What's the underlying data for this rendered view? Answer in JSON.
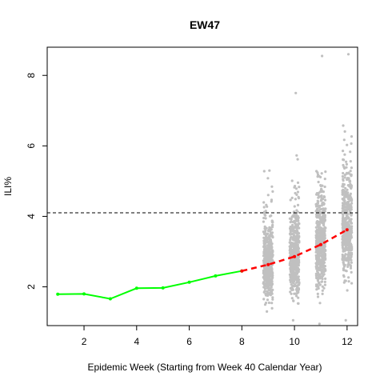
{
  "chart_data": {
    "type": "scatter",
    "title": "EW47",
    "xlabel": "Epidemic Week (Starting from Week 40 Calendar Year)",
    "ylabel": "ILI%",
    "xlim": [
      0.6,
      12.4
    ],
    "ylim": [
      0.9,
      8.8
    ],
    "x_ticks": [
      2,
      4,
      6,
      8,
      10,
      12
    ],
    "y_ticks": [
      2,
      4,
      6,
      8
    ],
    "threshold": {
      "y": 4.1,
      "style": "dashed",
      "color": "#000000"
    },
    "series": [
      {
        "kind": "observed",
        "color": "#00ff00",
        "x": [
          1,
          2,
          3,
          4,
          5,
          6,
          7,
          8
        ],
        "y": [
          1.79,
          1.8,
          1.66,
          1.96,
          1.97,
          2.13,
          2.31,
          2.45
        ]
      },
      {
        "kind": "forecast-median",
        "color": "#ff0000",
        "style": "dashed",
        "x": [
          8,
          9,
          10,
          11,
          12
        ],
        "y": [
          2.45,
          2.63,
          2.86,
          3.2,
          3.62
        ]
      }
    ],
    "forecast_samples": {
      "color": "#c0c0c0",
      "columns": [
        {
          "x": 9,
          "median": 2.63,
          "min": 1.3,
          "max": 5.3
        },
        {
          "x": 10,
          "median": 2.86,
          "min": 1.05,
          "max": 7.5
        },
        {
          "x": 11,
          "median": 3.2,
          "min": 0.95,
          "max": 8.55
        },
        {
          "x": 12,
          "median": 3.62,
          "min": 1.05,
          "max": 8.6
        }
      ]
    }
  }
}
